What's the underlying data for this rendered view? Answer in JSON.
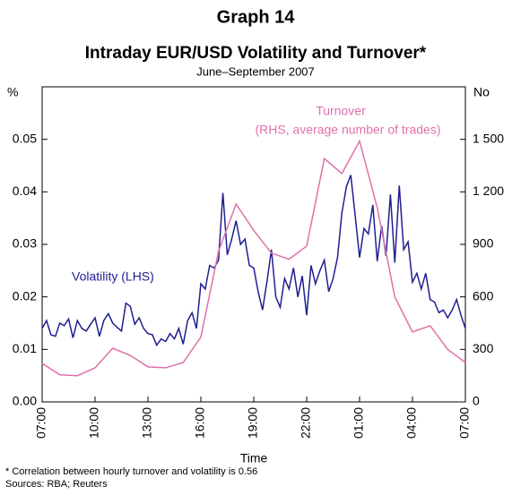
{
  "chart_data": {
    "type": "line",
    "title": "Graph 14",
    "subtitle": "Intraday EUR/USD Volatility and Turnover*",
    "subtitle2": "June–September 2007",
    "xlabel": "Time",
    "ylabel": "%",
    "y2label": "No",
    "footnotes": [
      "*   Correlation between hourly turnover and volatility is 0.56",
      "Sources: RBA; Reuters"
    ],
    "xlim": [
      0,
      24
    ],
    "xticks": [
      {
        "value": 0,
        "label": "07:00"
      },
      {
        "value": 3,
        "label": "10:00"
      },
      {
        "value": 6,
        "label": "13:00"
      },
      {
        "value": 9,
        "label": "16:00"
      },
      {
        "value": 12,
        "label": "19:00"
      },
      {
        "value": 15,
        "label": "22:00"
      },
      {
        "value": 18,
        "label": "01:00"
      },
      {
        "value": 21,
        "label": "04:00"
      },
      {
        "value": 24,
        "label": "07:00"
      }
    ],
    "ylim": [
      0,
      0.06
    ],
    "yticks": [
      {
        "value": 0,
        "label": "0.00"
      },
      0.01,
      0.02,
      0.03,
      0.04,
      0.05
    ],
    "y2lim": [
      0,
      1800
    ],
    "y2ticks": [
      0,
      300,
      600,
      900,
      {
        "value": 1200,
        "label": "1 200"
      },
      {
        "value": 1500,
        "label": "1 500"
      }
    ],
    "series": [
      {
        "name": "Volatility (LHS)",
        "color": "#1f1f8f",
        "axis": "y",
        "x": [
          0,
          0.25,
          0.5,
          0.75,
          1,
          1.25,
          1.5,
          1.75,
          2,
          2.25,
          2.5,
          2.75,
          3,
          3.25,
          3.5,
          3.75,
          4,
          4.25,
          4.5,
          4.75,
          5,
          5.25,
          5.5,
          5.75,
          6,
          6.25,
          6.5,
          6.75,
          7,
          7.25,
          7.5,
          7.75,
          8,
          8.25,
          8.5,
          8.75,
          9,
          9.25,
          9.5,
          9.75,
          10,
          10.25,
          10.5,
          10.75,
          11,
          11.25,
          11.5,
          11.75,
          12,
          12.25,
          12.5,
          12.75,
          13,
          13.25,
          13.5,
          13.75,
          14,
          14.25,
          14.5,
          14.75,
          15,
          15.25,
          15.5,
          15.75,
          16,
          16.25,
          16.5,
          16.75,
          17,
          17.25,
          17.5,
          17.75,
          18,
          18.25,
          18.5,
          18.75,
          19,
          19.25,
          19.5,
          19.75,
          20,
          20.25,
          20.5,
          20.75,
          21,
          21.25,
          21.5,
          21.75,
          22,
          22.25,
          22.5,
          22.75,
          23,
          23.25,
          23.5,
          23.75,
          24
        ],
        "values": [
          0.014,
          0.0155,
          0.0128,
          0.0125,
          0.015,
          0.0145,
          0.0158,
          0.0122,
          0.0155,
          0.014,
          0.0135,
          0.0148,
          0.016,
          0.0125,
          0.0155,
          0.0168,
          0.015,
          0.0142,
          0.0135,
          0.0188,
          0.0182,
          0.0148,
          0.016,
          0.014,
          0.013,
          0.0128,
          0.0108,
          0.012,
          0.0115,
          0.013,
          0.012,
          0.014,
          0.011,
          0.0155,
          0.017,
          0.014,
          0.0225,
          0.0215,
          0.026,
          0.0255,
          0.027,
          0.0398,
          0.028,
          0.031,
          0.0345,
          0.03,
          0.031,
          0.026,
          0.0255,
          0.021,
          0.0175,
          0.023,
          0.029,
          0.02,
          0.018,
          0.0235,
          0.0215,
          0.0255,
          0.02,
          0.024,
          0.0165,
          0.026,
          0.0225,
          0.025,
          0.027,
          0.021,
          0.0235,
          0.0275,
          0.036,
          0.041,
          0.0432,
          0.0355,
          0.0275,
          0.033,
          0.032,
          0.0375,
          0.0268,
          0.0335,
          0.0278,
          0.0395,
          0.0265,
          0.0412,
          0.029,
          0.0305,
          0.0228,
          0.0245,
          0.0215,
          0.0245,
          0.0195,
          0.019,
          0.017,
          0.0175,
          0.016,
          0.0175,
          0.0195,
          0.0165,
          0.014
        ]
      },
      {
        "name": "Turnover",
        "note": "(RHS, average number of trades)",
        "color": "#e070aa",
        "axis": "y2",
        "x": [
          0,
          1,
          2,
          3,
          4,
          5,
          6,
          7,
          8,
          9,
          10,
          11,
          12,
          13,
          14,
          15,
          16,
          17,
          18,
          19,
          20,
          21,
          22,
          23,
          24
        ],
        "values": [
          220,
          155,
          150,
          195,
          307,
          266,
          200,
          195,
          225,
          370,
          860,
          1130,
          980,
          850,
          815,
          890,
          1390,
          1305,
          1490,
          1110,
          600,
          400,
          435,
          300,
          225
        ]
      }
    ]
  }
}
